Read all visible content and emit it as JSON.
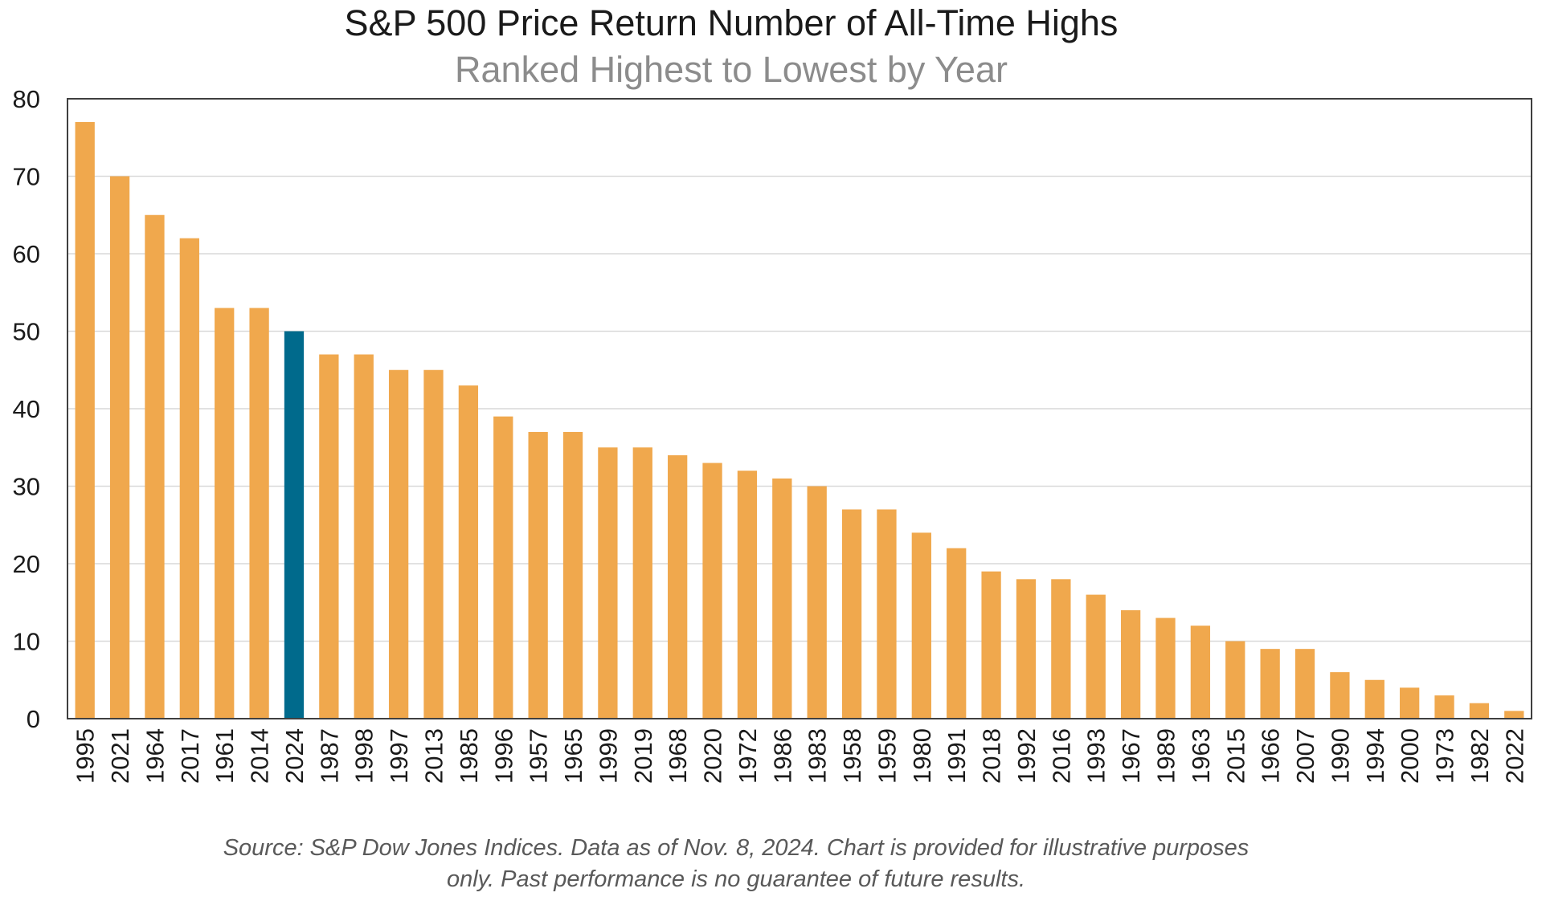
{
  "chart_data": {
    "type": "bar",
    "title": "S&P 500 Price Return Number of All-Time Highs",
    "subtitle": "Ranked Highest to Lowest by Year",
    "xlabel": "",
    "ylabel": "",
    "ylim": [
      0,
      80
    ],
    "yticks": [
      0,
      10,
      20,
      30,
      40,
      50,
      60,
      70,
      80
    ],
    "grid": true,
    "legend": "none",
    "categories": [
      "1995",
      "2021",
      "1964",
      "2017",
      "1961",
      "2014",
      "2024",
      "1987",
      "1998",
      "1997",
      "2013",
      "1985",
      "1996",
      "1957",
      "1965",
      "1999",
      "2019",
      "1968",
      "2020",
      "1972",
      "1986",
      "1983",
      "1958",
      "1959",
      "1980",
      "1991",
      "2018",
      "1992",
      "2016",
      "1993",
      "1967",
      "1989",
      "1963",
      "2015",
      "1966",
      "2007",
      "1990",
      "1994",
      "2000",
      "1973",
      "1982",
      "2022"
    ],
    "values": [
      77,
      70,
      65,
      62,
      53,
      53,
      50,
      47,
      47,
      45,
      45,
      43,
      39,
      37,
      37,
      35,
      35,
      34,
      33,
      32,
      31,
      30,
      27,
      27,
      24,
      22,
      19,
      18,
      18,
      16,
      14,
      13,
      12,
      10,
      9,
      9,
      6,
      5,
      4,
      3,
      2,
      1
    ],
    "highlight_category": "2024",
    "colors": {
      "bar": "#F0A84D",
      "highlight": "#006A8C",
      "grid": "#d9d9d9",
      "axis": "#3f3f3f"
    },
    "source_lines": [
      "Source: S&P Dow Jones Indices. Data as of Nov. 8, 2024. Chart is provided for illustrative purposes",
      "only.  Past performance is no guarantee of future results."
    ]
  }
}
